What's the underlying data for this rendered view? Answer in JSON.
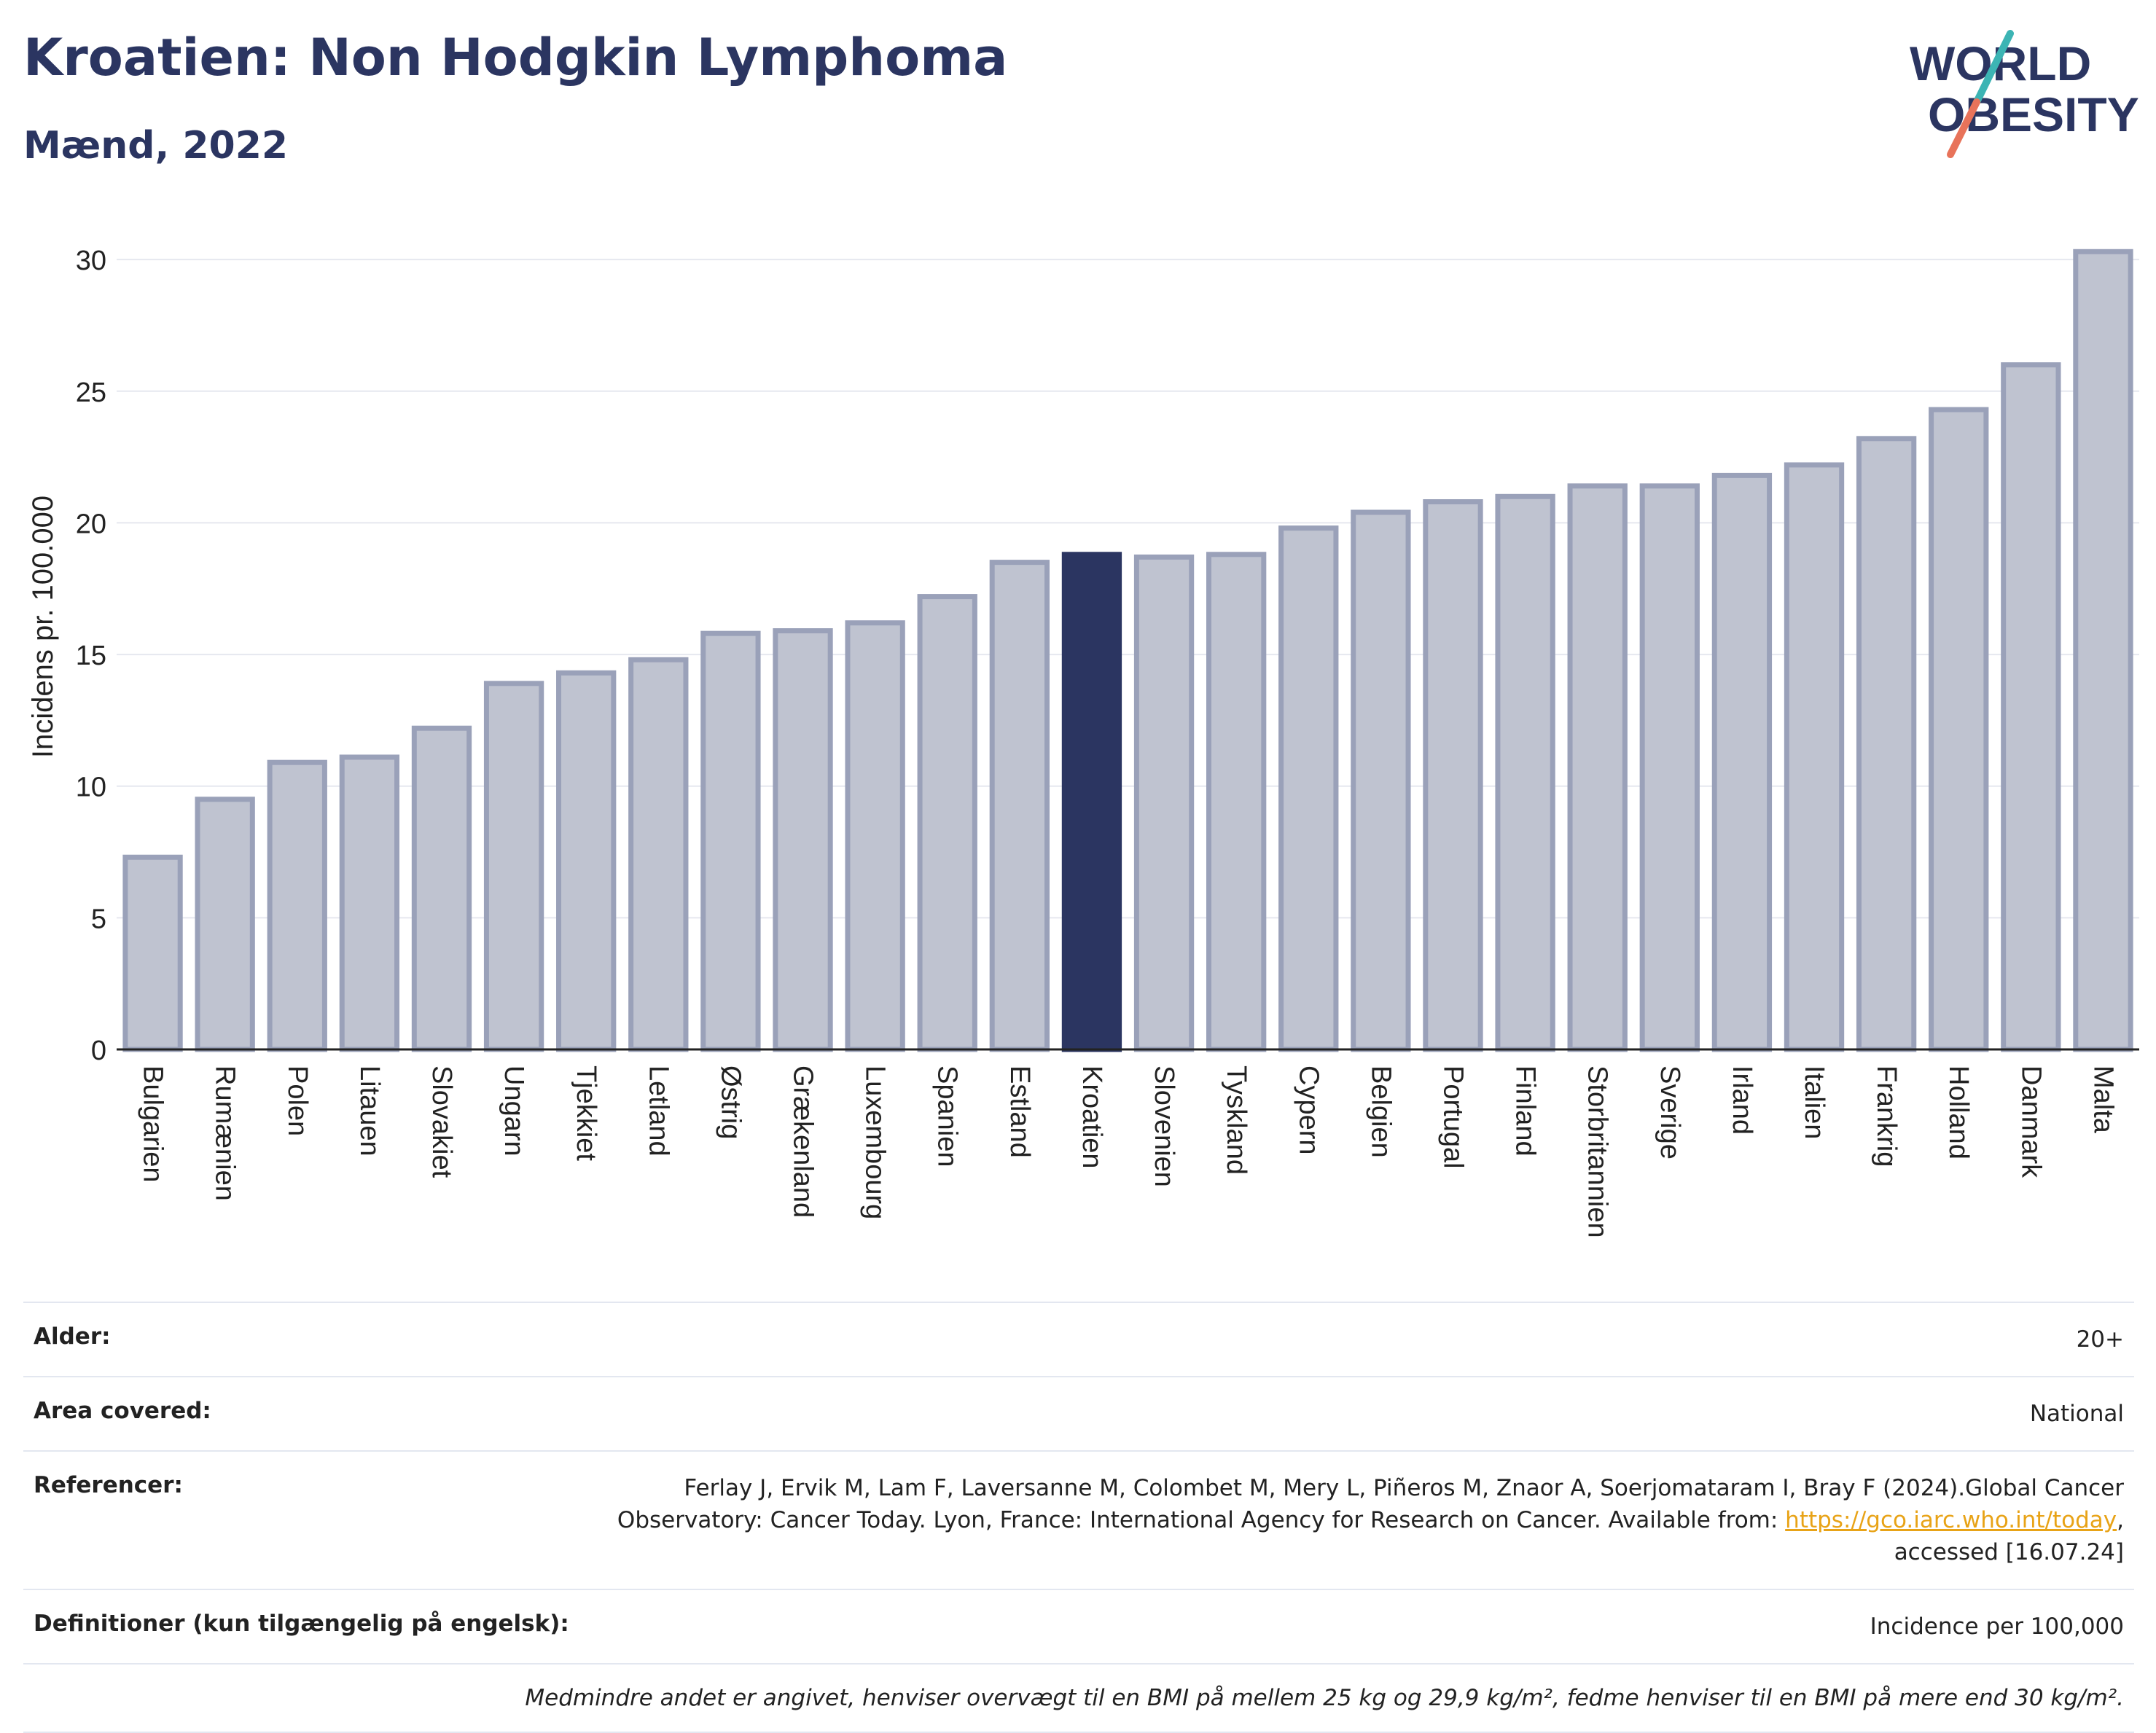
{
  "header": {
    "title": "Kroatien: Non Hodgkin Lymphoma",
    "subtitle": "Mænd, 2022"
  },
  "logo": {
    "line1": "WORLD",
    "line2": "OBESITY",
    "colors": {
      "text": "#2b3561",
      "slash_top": "#3cb4b4",
      "slash_bottom": "#e8735a"
    }
  },
  "chart_data": {
    "type": "bar",
    "ylabel": "Incidens pr. 100.000",
    "xlabel": "",
    "ylim": [
      0,
      31
    ],
    "yticks": [
      0,
      5,
      10,
      15,
      20,
      25,
      30
    ],
    "grid": true,
    "highlight": "Kroatien",
    "colors": {
      "bar": "#bfc3d0",
      "bar_edge": "#9aa1b9",
      "highlight": "#2b3561",
      "grid": "#e6e8ef",
      "axis": "#222222"
    },
    "categories": [
      "Bulgarien",
      "Rumænien",
      "Polen",
      "Litauen",
      "Slovakiet",
      "Ungarn",
      "Tjekkiet",
      "Letland",
      "Østrig",
      "Grækenland",
      "Luxembourg",
      "Spanien",
      "Estland",
      "Kroatien",
      "Slovenien",
      "Tyskland",
      "Cypern",
      "Belgien",
      "Portugal",
      "Finland",
      "Storbritannien",
      "Sverige",
      "Irland",
      "Italien",
      "Frankrig",
      "Holland",
      "Danmark",
      "Malta"
    ],
    "values": [
      7.3,
      9.5,
      10.9,
      11.1,
      12.2,
      13.9,
      14.3,
      14.8,
      15.8,
      15.9,
      16.2,
      17.2,
      18.5,
      18.8,
      18.7,
      18.8,
      19.8,
      20.4,
      20.8,
      21.0,
      21.4,
      21.4,
      21.8,
      22.2,
      23.2,
      24.3,
      26.0,
      30.3
    ]
  },
  "meta": {
    "age_label": "Alder:",
    "age_value": "20+",
    "area_label": "Area covered:",
    "area_value": "National",
    "ref_label": "Referencer:",
    "ref_text_1": "Ferlay J, Ervik M, Lam F, Laversanne M, Colombet M, Mery L, Piñeros M, Znaor A, Soerjomataram I, Bray F (2024).Global Cancer Observatory: Cancer Today. Lyon, France: International Agency for Research on Cancer. Available from: ",
    "ref_link": "https://gco.iarc.who.int/today",
    "ref_text_2": ", accessed [16.07.24]",
    "def_label": "Definitioner (kun tilgængelig på engelsk):",
    "def_value": "Incidence per 100,000",
    "note": "Medmindre andet er angivet, henviser overvægt til en BMI på mellem 25 kg og 29,9 kg/m², fedme henviser til en BMI på mere end 30 kg/m²."
  }
}
